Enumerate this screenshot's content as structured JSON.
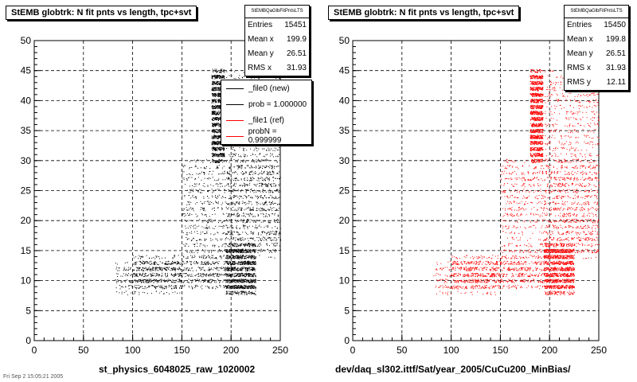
{
  "footer": "Fri Sep 2 15:05:21 2005",
  "chart_data": [
    {
      "type": "scatter",
      "title": "StEMB globtrk: N fit pnts vs length, tpc+svt",
      "xlabel": "st_physics_6048025_raw_1020002",
      "ylabel": "",
      "xlim": [
        0,
        250
      ],
      "ylim": [
        0,
        50
      ],
      "x_ticks": [
        "0",
        "50",
        "100",
        "150",
        "200",
        "250"
      ],
      "y_ticks": [
        "0",
        "5",
        "10",
        "15",
        "20",
        "25",
        "30",
        "35",
        "40",
        "45",
        "50"
      ],
      "grid": true,
      "color": "#000000",
      "stats": {
        "header": "StEMBQaGlbFitPntsLTS",
        "rows": [
          {
            "label": "Entries",
            "value": "15451"
          },
          {
            "label": "Mean x",
            "value": "199.9"
          },
          {
            "label": "Mean y",
            "value": "26.51"
          },
          {
            "label": "RMS x",
            "value": "31.93"
          }
        ]
      },
      "legend": {
        "placement": "top-right",
        "entries": [
          {
            "label": "_file0 (new)",
            "color": "#000000"
          },
          {
            "label": "prob = 1.000000",
            "color": "#000000"
          },
          {
            "label": "_file1 (ref)",
            "color": "#ff0000"
          },
          {
            "label": "probN = 0.999999",
            "color": "#ff0000"
          }
        ]
      },
      "clusters": [
        {
          "x": [
            180,
            193
          ],
          "y": [
            30,
            45
          ],
          "n": 1400
        },
        {
          "x": [
            194,
            225
          ],
          "y": [
            8,
            16
          ],
          "n": 1400
        },
        {
          "x": [
            100,
            195
          ],
          "y": [
            9,
            14
          ],
          "n": 800
        },
        {
          "x": [
            150,
            250
          ],
          "y": [
            14,
            30
          ],
          "n": 1100
        },
        {
          "x": [
            195,
            250
          ],
          "y": [
            15,
            45
          ],
          "n": 900
        },
        {
          "x": [
            82,
            150
          ],
          "y": [
            8,
            13
          ],
          "n": 300
        }
      ]
    },
    {
      "type": "scatter",
      "title": "StEMB globtrk: N fit pnts vs length, tpc+svt",
      "xlabel": "dev/daq_sl302.ittf/Sat/year_2005/CuCu200_MinBias/",
      "ylabel": "",
      "xlim": [
        0,
        250
      ],
      "ylim": [
        0,
        50
      ],
      "x_ticks": [
        "0",
        "50",
        "100",
        "150",
        "200",
        "250"
      ],
      "y_ticks": [
        "0",
        "5",
        "10",
        "15",
        "20",
        "25",
        "30",
        "35",
        "40",
        "45",
        "50"
      ],
      "grid": true,
      "color": "#ff0000",
      "stats": {
        "header": "StEMBQaGlbFitPntsLTS",
        "rows": [
          {
            "label": "Entries",
            "value": "15450"
          },
          {
            "label": "Mean x",
            "value": "199.8"
          },
          {
            "label": "Mean y",
            "value": "26.51"
          },
          {
            "label": "RMS x",
            "value": "31.93"
          },
          {
            "label": "RMS y",
            "value": "12.11"
          }
        ]
      },
      "clusters": [
        {
          "x": [
            180,
            193
          ],
          "y": [
            30,
            45
          ],
          "n": 1400
        },
        {
          "x": [
            194,
            225
          ],
          "y": [
            8,
            16
          ],
          "n": 1400
        },
        {
          "x": [
            100,
            195
          ],
          "y": [
            9,
            14
          ],
          "n": 800
        },
        {
          "x": [
            150,
            250
          ],
          "y": [
            14,
            30
          ],
          "n": 1100
        },
        {
          "x": [
            195,
            250
          ],
          "y": [
            15,
            45
          ],
          "n": 900
        },
        {
          "x": [
            82,
            150
          ],
          "y": [
            8,
            13
          ],
          "n": 300
        }
      ]
    }
  ]
}
